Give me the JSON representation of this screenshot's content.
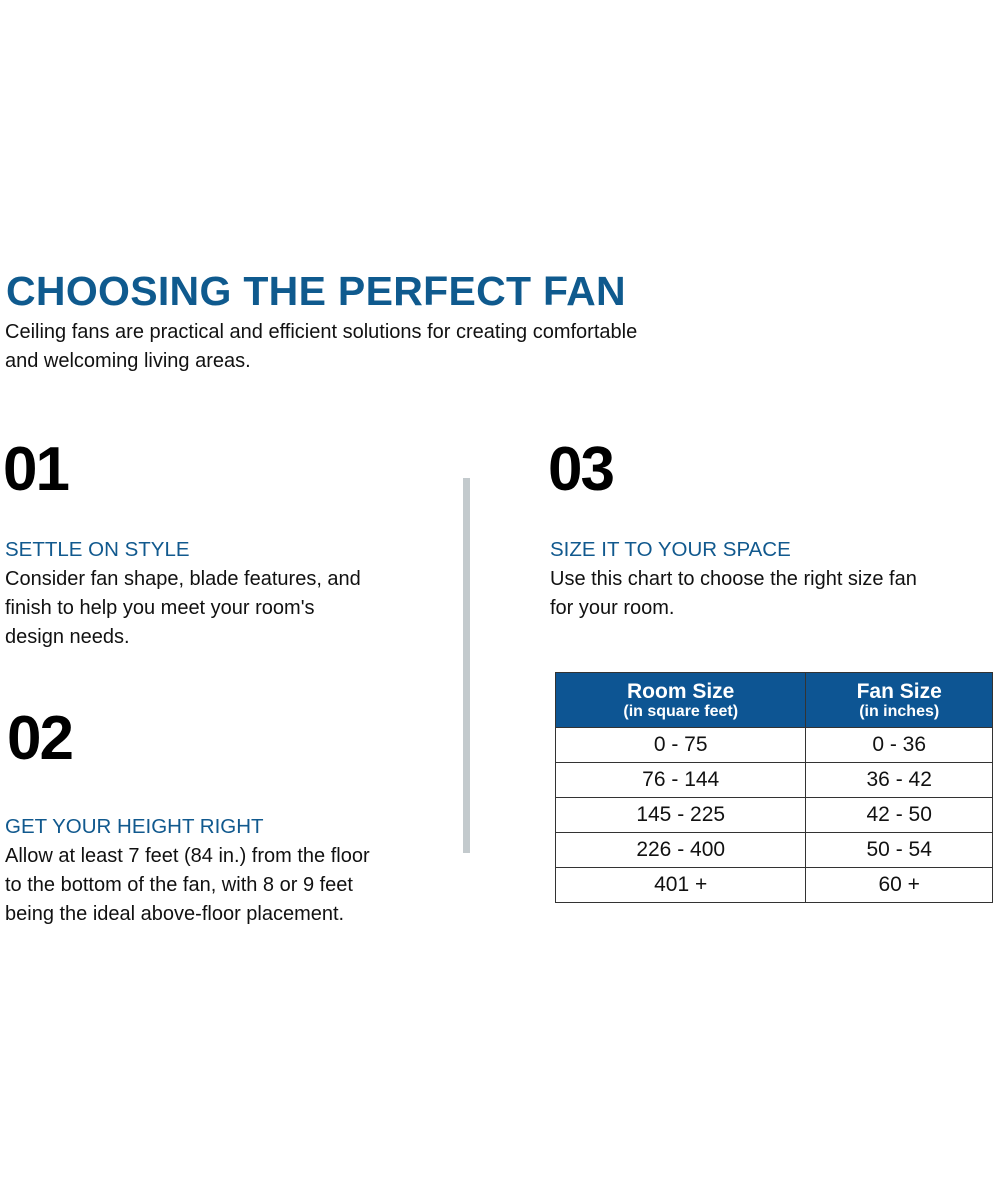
{
  "title": "CHOOSING THE PERFECT FAN",
  "intro": [
    "Ceiling fans are practical and efficient solutions for creating comfortable",
    "and welcoming living areas."
  ],
  "sections": [
    {
      "number": "01",
      "heading": "SETTLE ON STYLE",
      "lines": [
        "Consider fan shape, blade features, and",
        "finish to help you meet your room's",
        "design needs."
      ]
    },
    {
      "number": "02",
      "heading": "GET YOUR HEIGHT RIGHT",
      "lines": [
        "Allow at least 7 feet (84 in.) from the floor",
        "to the bottom of the fan, with 8 or 9 feet",
        "being the ideal above-floor placement."
      ]
    },
    {
      "number": "03",
      "heading": "SIZE IT TO YOUR SPACE",
      "lines": [
        "Use this chart to choose the right size fan",
        "for your room."
      ]
    }
  ],
  "table": {
    "headers": [
      {
        "title": "Room Size",
        "sub": "(in square feet)"
      },
      {
        "title": "Fan Size",
        "sub": "(in inches)"
      }
    ],
    "rows": [
      [
        "0 - 75",
        "0 - 36"
      ],
      [
        "76 - 144",
        "36 - 42"
      ],
      [
        "145 - 225",
        "42 - 50"
      ],
      [
        "226 - 400",
        "50 - 54"
      ],
      [
        "401 +",
        "60 +"
      ]
    ]
  },
  "colors": {
    "brand_blue": "#0f5a8e",
    "table_header": "#0d5593",
    "divider": "#c3cacd"
  }
}
